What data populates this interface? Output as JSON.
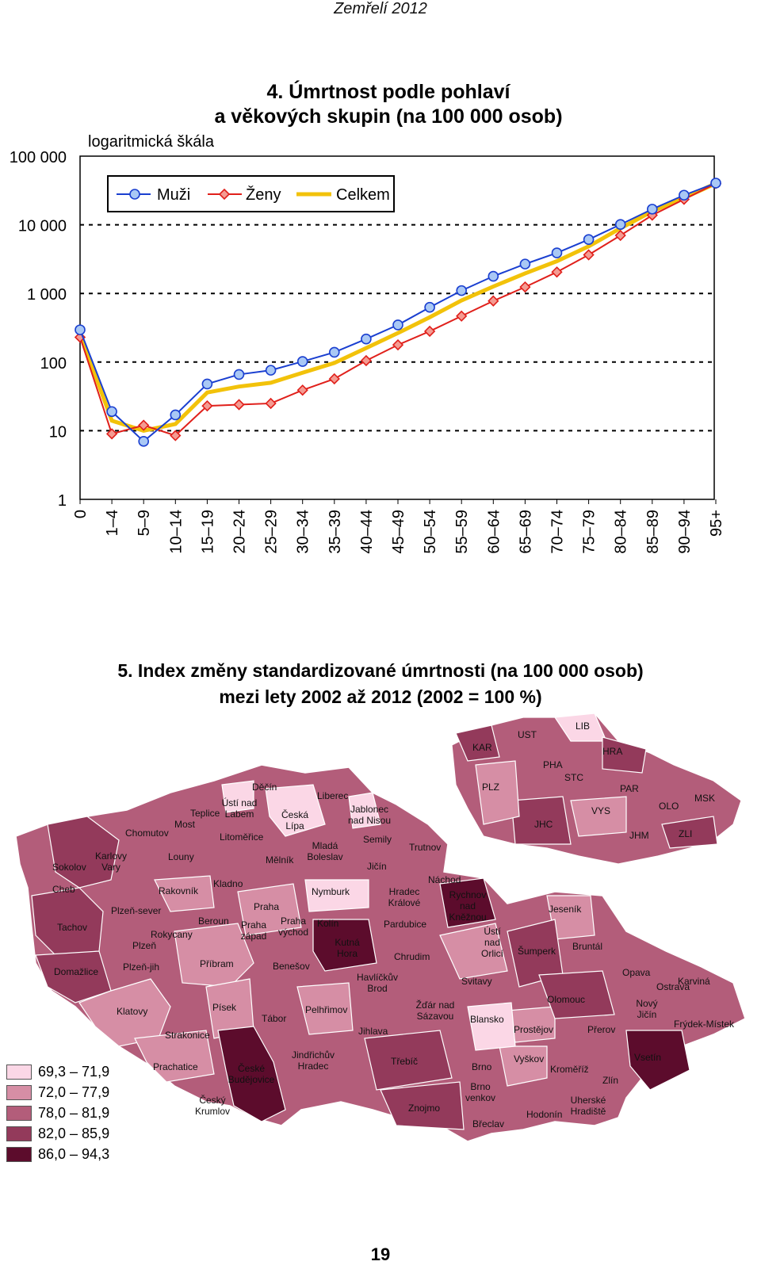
{
  "header": "Zemřelí 2012",
  "chart": {
    "title_line1": "4. Úmrtnost podle pohlaví",
    "title_line2": "a věkových skupin (na 100 000 osob)",
    "scale_note": "logaritmická škála"
  },
  "chart_data": {
    "type": "line",
    "yscale": "log",
    "ylim": [
      1,
      100000
    ],
    "yticks": [
      "1",
      "10",
      "100",
      "1 000",
      "10 000",
      "100 000"
    ],
    "gridlines": "dashed at 10, 100, 1 000, 10 000",
    "legend_position": "top-left",
    "categories": [
      "0",
      "1–4",
      "5–9",
      "10–14",
      "15–19",
      "20–24",
      "25–29",
      "30–34",
      "35–39",
      "40–44",
      "45–49",
      "50–54",
      "55–59",
      "60–64",
      "65–69",
      "70–74",
      "75–79",
      "80–84",
      "85–89",
      "90–94",
      "95+"
    ],
    "series": [
      {
        "name": "Muži",
        "color": "#1a3fd0",
        "marker": "circle",
        "values": [
          295,
          19,
          7,
          17,
          48,
          66,
          76,
          102,
          139,
          217,
          348,
          628,
          1100,
          1780,
          2680,
          3900,
          6100,
          10100,
          16900,
          27000,
          40500
        ]
      },
      {
        "name": "Ženy",
        "color": "#e0201b",
        "marker": "diamond",
        "values": [
          230,
          9,
          12,
          8.5,
          23,
          24,
          25,
          39,
          57,
          105,
          178,
          281,
          468,
          777,
          1240,
          2050,
          3650,
          7000,
          13800,
          23500,
          40000
        ]
      },
      {
        "name": "Celkem",
        "color": "#f2c20a",
        "marker": "none",
        "values": [
          262,
          14,
          10,
          12.5,
          36,
          44,
          50,
          70,
          97,
          160,
          265,
          450,
          790,
          1260,
          1960,
          2950,
          4850,
          8900,
          15700,
          24700,
          40000
        ]
      }
    ]
  },
  "map": {
    "title_line1": "5. Index změny standardizované úmrtnosti (na 100 000 osob)",
    "title_line2": "mezi lety 2002 až 2012 (2002 = 100 %)",
    "legend": [
      {
        "label": "69,3 – 71,9",
        "color": "#fbd7e6"
      },
      {
        "label": "72,0 – 77,9",
        "color": "#d68ea5"
      },
      {
        "label": "78,0 – 81,9",
        "color": "#b35d7a"
      },
      {
        "label": "82,0 – 85,9",
        "color": "#933a5b"
      },
      {
        "label": "86,0 – 94,3",
        "color": "#5c0c2c"
      }
    ],
    "regions_inset": [
      "UST",
      "LIB",
      "KAR",
      "HRA",
      "PHA",
      "STC",
      "PLZ",
      "PAR",
      "VYS",
      "OLO",
      "MSK",
      "JHC",
      "JHM",
      "ZLI"
    ],
    "districts": [
      "Děčín",
      "Ústí nad Labem",
      "Teplice",
      "Liberec",
      "Jablonec nad Nisou",
      "Česká Lípa",
      "Most",
      "Chomutov",
      "Litoměřice",
      "Semily",
      "Mladá Boleslav",
      "Trutnov",
      "Sokolov",
      "Karlovy Vary",
      "Louny",
      "Mělník",
      "Jičín",
      "Náchod",
      "Cheb",
      "Rakovník",
      "Kladno",
      "Praha",
      "Nymburk",
      "Hradec Králové",
      "Rychnov nad Kněžnou",
      "Tachov",
      "Plzeň-sever",
      "Beroun",
      "Praha západ",
      "Praha východ",
      "Kolín",
      "Pardubice",
      "Jeseník",
      "Rokycany",
      "Plzeň",
      "Kutná Hora",
      "Ústí nad Orlicí",
      "Šumperk",
      "Bruntál",
      "Domažlice",
      "Plzeň-jih",
      "Příbram",
      "Benešov",
      "Chrudim",
      "Havlíčkův Brod",
      "Svitavy",
      "Opava",
      "Ostrava",
      "Karviná",
      "Klatovy",
      "Písek",
      "Tábor",
      "Pelhřimov",
      "Žďár nad Sázavou",
      "Olomouc",
      "Nový Jičín",
      "Frýdek-Místek",
      "Strakonice",
      "Jihlava",
      "Blansko",
      "Prostějov",
      "Přerov",
      "Prachatice",
      "České Budějovice",
      "Jindřichův Hradec",
      "Třebíč",
      "Brno",
      "Vyškov",
      "Kroměříž",
      "Vsetín",
      "Zlín",
      "Brno venkov",
      "Český Krumlov",
      "Znojmo",
      "Uherské Hradiště",
      "Břeclav",
      "Hodonín"
    ]
  },
  "page_number": "19"
}
